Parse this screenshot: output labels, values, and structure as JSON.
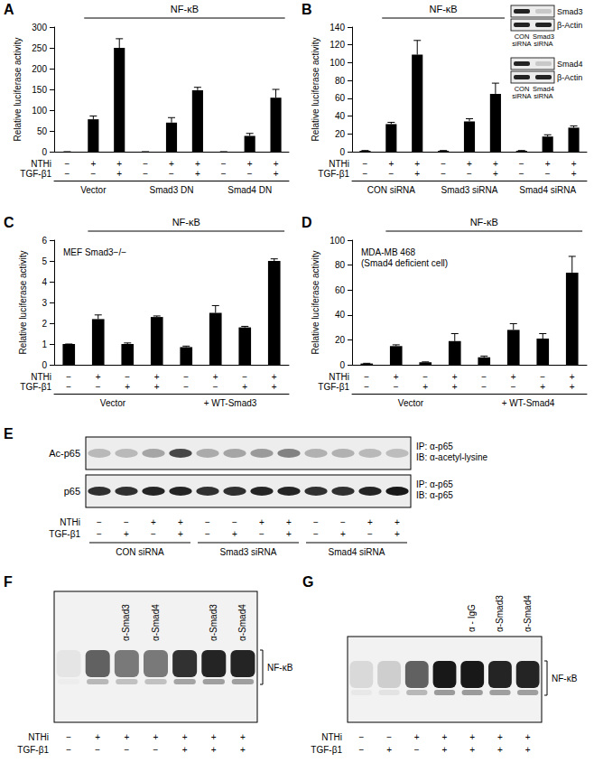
{
  "chart_data": [
    {
      "panel": "A",
      "type": "bar",
      "title": "NF-κB",
      "y_label": "Relative luciferase activity",
      "conditions": [
        {
          "name": "NTHi",
          "signs": [
            "−",
            "+",
            "+",
            "−",
            "+",
            "+",
            "−",
            "+",
            "+"
          ]
        },
        {
          "name": "TGF-β1",
          "signs": [
            "−",
            "−",
            "+",
            "−",
            "−",
            "+",
            "−",
            "−",
            "+"
          ]
        }
      ],
      "groups": [
        "Vector",
        "Smad3 DN",
        "Smad4 DN"
      ],
      "values": [
        0,
        78,
        250,
        0,
        70,
        148,
        0,
        38,
        130
      ],
      "errors": [
        0,
        8,
        22,
        0,
        12,
        7,
        0,
        6,
        20
      ],
      "color": "#000000",
      "ylim": [
        0,
        300
      ],
      "yticks": [
        0,
        50,
        100,
        150,
        200,
        250,
        300
      ],
      "grid": false
    },
    {
      "panel": "B",
      "type": "bar",
      "title": "NF-κB",
      "y_label": "Relative luciferase activity",
      "conditions": [
        {
          "name": "NTHi",
          "signs": [
            "−",
            "+",
            "+",
            "−",
            "+",
            "+",
            "−",
            "+",
            "+"
          ]
        },
        {
          "name": "TGF-β1",
          "signs": [
            "−",
            "−",
            "+",
            "−",
            "−",
            "+",
            "−",
            "−",
            "+"
          ]
        }
      ],
      "groups": [
        "CON siRNA",
        "Smad3 siRNA",
        "Smad4 siRNA"
      ],
      "values": [
        1,
        31,
        109,
        1,
        34,
        65,
        1,
        17,
        27
      ],
      "errors": [
        0.3,
        2,
        16,
        0.3,
        3,
        12,
        0.3,
        2,
        2
      ],
      "color": "#000000",
      "ylim": [
        0,
        140
      ],
      "yticks": [
        0,
        20,
        40,
        60,
        80,
        100,
        120,
        140
      ],
      "grid": false,
      "insets": [
        {
          "proteins": [
            "Smad3",
            "β-Actin"
          ],
          "lanes": [
            "CON siRNA",
            "Smad3 siRNA"
          ]
        },
        {
          "proteins": [
            "Smad4",
            "β-Actin"
          ],
          "lanes": [
            "CON siRNA",
            "Smad4 siRNA"
          ]
        }
      ]
    },
    {
      "panel": "C",
      "type": "bar",
      "title": "NF-κB",
      "y_label": "Relative luciferase activity",
      "annotation": [
        "MEF Smad3−/−"
      ],
      "conditions": [
        {
          "name": "NTHi",
          "signs": [
            "−",
            "+",
            "−",
            "+",
            "−",
            "+",
            "−",
            "+"
          ]
        },
        {
          "name": "TGF-β1",
          "signs": [
            "−",
            "−",
            "+",
            "+",
            "−",
            "−",
            "+",
            "+"
          ]
        }
      ],
      "groups": [
        "Vector",
        "+ WT-Smad3"
      ],
      "values": [
        1,
        2.2,
        1.0,
        2.3,
        0.85,
        2.5,
        1.8,
        5.0
      ],
      "errors": [
        0,
        0.2,
        0.05,
        0.05,
        0.05,
        0.35,
        0.05,
        0.1
      ],
      "color": "#000000",
      "ylim": [
        0,
        6
      ],
      "yticks": [
        0,
        1,
        2,
        3,
        4,
        5,
        6
      ],
      "grid": false
    },
    {
      "panel": "D",
      "type": "bar",
      "title": "NF-κB",
      "y_label": "Relative luciferase activity",
      "annotation": [
        "MDA-MB 468",
        "(Smad4 deficient cell)"
      ],
      "conditions": [
        {
          "name": "NTHi",
          "signs": [
            "−",
            "+",
            "−",
            "+",
            "−",
            "+",
            "−",
            "+"
          ]
        },
        {
          "name": "TGF-β1",
          "signs": [
            "−",
            "−",
            "+",
            "+",
            "−",
            "−",
            "+",
            "+"
          ]
        }
      ],
      "groups": [
        "Vector",
        "+ WT-Smad4"
      ],
      "values": [
        1,
        15,
        2,
        19,
        6,
        28,
        21,
        74
      ],
      "errors": [
        0.2,
        1,
        0.3,
        6,
        1,
        5,
        4,
        13
      ],
      "color": "#000000",
      "ylim": [
        0,
        100
      ],
      "yticks": [
        0,
        20,
        40,
        60,
        80,
        100
      ],
      "grid": false
    }
  ],
  "blots": {
    "E": {
      "panel": "E",
      "blot_labels": [
        "Ac-p65",
        "p65"
      ],
      "blot_notes": [
        [
          "IP: α-p65",
          "IB: α-acetyl-lysine"
        ],
        [
          "IP: α-p65",
          "IB: α-p65"
        ]
      ],
      "conditions": [
        {
          "name": "NTHi",
          "signs": [
            "−",
            "−",
            "+",
            "+",
            "−",
            "−",
            "+",
            "+",
            "−",
            "−",
            "+",
            "+"
          ]
        },
        {
          "name": "TGF-β1",
          "signs": [
            "−",
            "+",
            "−",
            "+",
            "−",
            "+",
            "−",
            "+",
            "−",
            "+",
            "−",
            "+"
          ]
        }
      ],
      "groups": [
        "CON siRNA",
        "Smad3 siRNA",
        "Smad4 siRNA"
      ]
    },
    "F": {
      "panel": "F",
      "band_label": "NF-κB",
      "antibodies": [
        null,
        null,
        "α-Smad3",
        "α-Smad4",
        null,
        "α-Smad3",
        "α-Smad4"
      ],
      "conditions": [
        {
          "name": "NTHi",
          "signs": [
            "−",
            "+",
            "+",
            "+",
            "+",
            "+",
            "+"
          ]
        },
        {
          "name": "TGF-β1",
          "signs": [
            "−",
            "−",
            "−",
            "−",
            "+",
            "+",
            "+"
          ]
        }
      ]
    },
    "G": {
      "panel": "G",
      "band_label": "NF-κB",
      "antibodies": [
        null,
        null,
        null,
        null,
        "α - IgG",
        "α-Smad3",
        "α-Smad4"
      ],
      "conditions": [
        {
          "name": "NTHi",
          "signs": [
            "−",
            "−",
            "+",
            "+",
            "+",
            "+",
            "+"
          ]
        },
        {
          "name": "TGF-β1",
          "signs": [
            "−",
            "+",
            "−",
            "+",
            "+",
            "+",
            "+"
          ]
        }
      ]
    }
  }
}
